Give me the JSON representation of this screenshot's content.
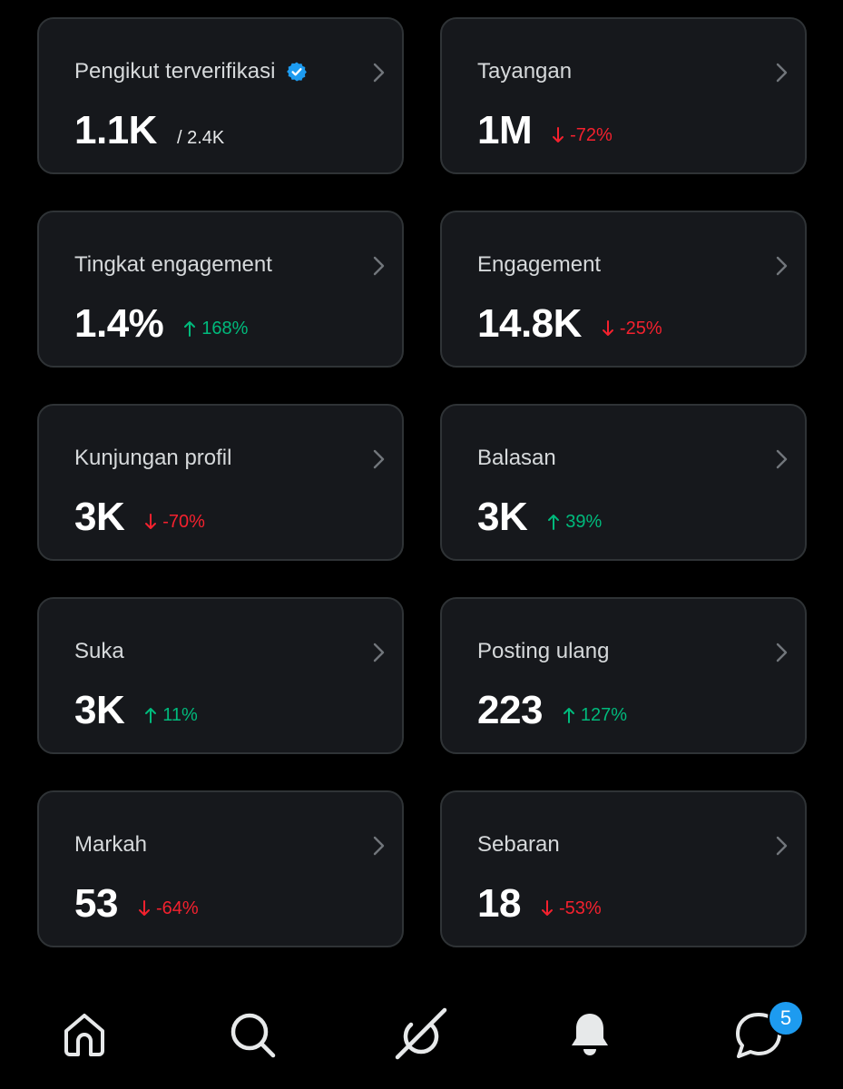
{
  "colors": {
    "down": "#f4212e",
    "up": "#00ba7c",
    "accent": "#1d9bf0"
  },
  "cards": [
    {
      "label": "Pengikut terverifikasi",
      "value": "1.1K",
      "sub": "/ 2.4K",
      "verified_icon": "verified-badge-icon"
    },
    {
      "label": "Tayangan",
      "value": "1M",
      "change": "-72%",
      "direction": "down"
    },
    {
      "label": "Tingkat engagement",
      "value": "1.4%",
      "change": "168%",
      "direction": "up"
    },
    {
      "label": "Engagement",
      "value": "14.8K",
      "change": "-25%",
      "direction": "down"
    },
    {
      "label": "Kunjungan profil",
      "value": "3K",
      "change": "-70%",
      "direction": "down"
    },
    {
      "label": "Balasan",
      "value": "3K",
      "change": "39%",
      "direction": "up"
    },
    {
      "label": "Suka",
      "value": "3K",
      "change": "11%",
      "direction": "up"
    },
    {
      "label": "Posting ulang",
      "value": "223",
      "change": "127%",
      "direction": "up"
    },
    {
      "label": "Markah",
      "value": "53",
      "change": "-64%",
      "direction": "down"
    },
    {
      "label": "Sebaran",
      "value": "18",
      "change": "-53%",
      "direction": "down"
    }
  ],
  "nav": {
    "items": [
      "home-icon",
      "search-icon",
      "grok-icon",
      "notifications-icon",
      "messages-icon"
    ],
    "messages_badge": "5"
  }
}
